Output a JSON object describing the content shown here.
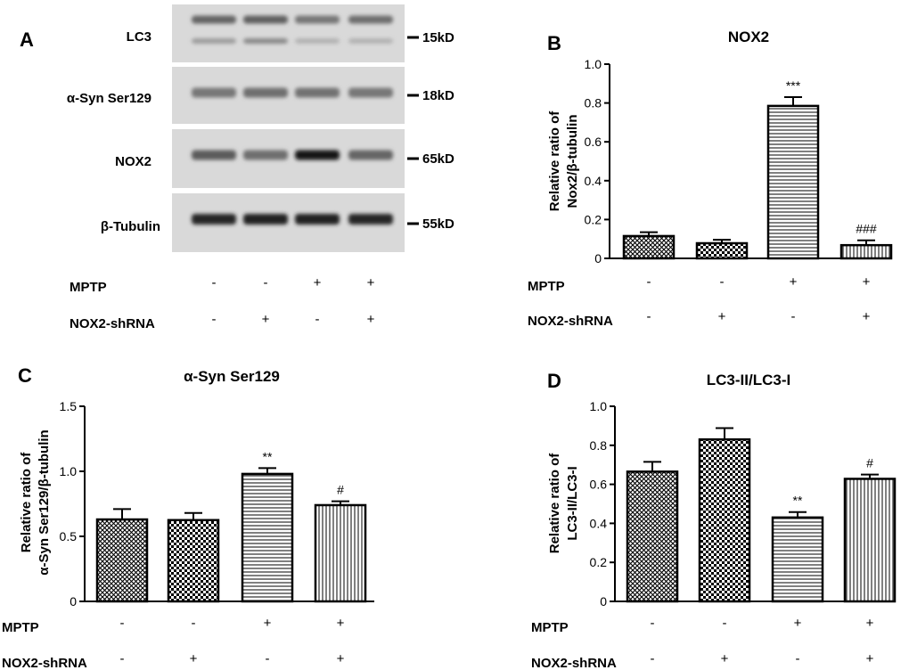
{
  "blot": {
    "panel_label": "A",
    "rows": [
      {
        "label": "LC3",
        "size": "15kD"
      },
      {
        "label": "α-Syn Ser129",
        "size": "18kD"
      },
      {
        "label": "NOX2",
        "size": "65kD"
      },
      {
        "label": "β-Tubulin",
        "size": "55kD"
      }
    ],
    "band_intensity": [
      [
        [
          0.55,
          0.25
        ],
        [
          0.58,
          0.35
        ],
        [
          0.45,
          0.12
        ],
        [
          0.5,
          0.12
        ]
      ],
      [
        [
          0.45
        ],
        [
          0.5
        ],
        [
          0.48
        ],
        [
          0.45
        ]
      ],
      [
        [
          0.6
        ],
        [
          0.5
        ],
        [
          1.0
        ],
        [
          0.55
        ]
      ],
      [
        [
          0.9
        ],
        [
          0.92
        ],
        [
          0.92
        ],
        [
          0.9
        ]
      ]
    ],
    "conditions": [
      {
        "label": "MPTP",
        "values": [
          "-",
          "-",
          "+",
          "+"
        ]
      },
      {
        "label": "NOX2-shRNA",
        "values": [
          "-",
          "+",
          "-",
          "+"
        ]
      }
    ]
  },
  "chart_data": [
    {
      "panel_label": "B",
      "type": "bar",
      "title": "NOX2",
      "ylabel_lines": [
        "Relative ratio of",
        "Nox2/β-tubulin"
      ],
      "ylim": [
        0,
        1.0
      ],
      "yticks": [
        "0",
        "0.2",
        "0.4",
        "0.6",
        "0.8",
        "1.0"
      ],
      "ytick_values": [
        0,
        0.2,
        0.4,
        0.6,
        0.8,
        1.0
      ],
      "values": [
        0.115,
        0.078,
        0.785,
        0.068
      ],
      "errors": [
        0.02,
        0.018,
        0.045,
        0.025
      ],
      "annotations": [
        "",
        "",
        "***",
        "###"
      ],
      "patterns": [
        "crosshatch",
        "checker",
        "hlines",
        "vlines"
      ],
      "conditions": [
        {
          "label": "MPTP",
          "values": [
            "-",
            "-",
            "+",
            "+"
          ]
        },
        {
          "label": "NOX2-shRNA",
          "values": [
            "-",
            "+",
            "-",
            "+"
          ]
        }
      ]
    },
    {
      "panel_label": "C",
      "type": "bar",
      "title": "α-Syn Ser129",
      "ylabel_lines": [
        "Relative ratio of",
        "α-Syn Ser129/β-tubulin"
      ],
      "ylim": [
        0,
        1.5
      ],
      "yticks": [
        "0",
        "0.5",
        "1.0",
        "1.5"
      ],
      "ytick_values": [
        0,
        0.5,
        1.0,
        1.5
      ],
      "values": [
        0.63,
        0.625,
        0.98,
        0.74
      ],
      "errors": [
        0.08,
        0.055,
        0.045,
        0.03
      ],
      "annotations": [
        "",
        "",
        "**",
        "#"
      ],
      "patterns": [
        "crosshatch",
        "checker",
        "hlines",
        "vlines"
      ],
      "conditions": [
        {
          "label": "MPTP",
          "values": [
            "-",
            "-",
            "+",
            "+"
          ]
        },
        {
          "label": "NOX2-shRNA",
          "values": [
            "-",
            "+",
            "-",
            "+"
          ]
        }
      ]
    },
    {
      "panel_label": "D",
      "type": "bar",
      "title": "LC3-II/LC3-I",
      "ylabel_lines": [
        "Relative ratio of",
        "LC3-II/LC3-I"
      ],
      "ylim": [
        0,
        1.0
      ],
      "yticks": [
        "0",
        "0.2",
        "0.4",
        "0.6",
        "0.8",
        "1.0"
      ],
      "ytick_values": [
        0,
        0.2,
        0.4,
        0.6,
        0.8,
        1.0
      ],
      "values": [
        0.665,
        0.83,
        0.43,
        0.628
      ],
      "errors": [
        0.05,
        0.058,
        0.028,
        0.022
      ],
      "annotations": [
        "",
        "",
        "**",
        "#"
      ],
      "patterns": [
        "crosshatch",
        "checker",
        "hlines",
        "vlines"
      ],
      "conditions": [
        {
          "label": "MPTP",
          "values": [
            "-",
            "-",
            "+",
            "+"
          ]
        },
        {
          "label": "NOX2-shRNA",
          "values": [
            "-",
            "+",
            "-",
            "+"
          ]
        }
      ]
    }
  ]
}
